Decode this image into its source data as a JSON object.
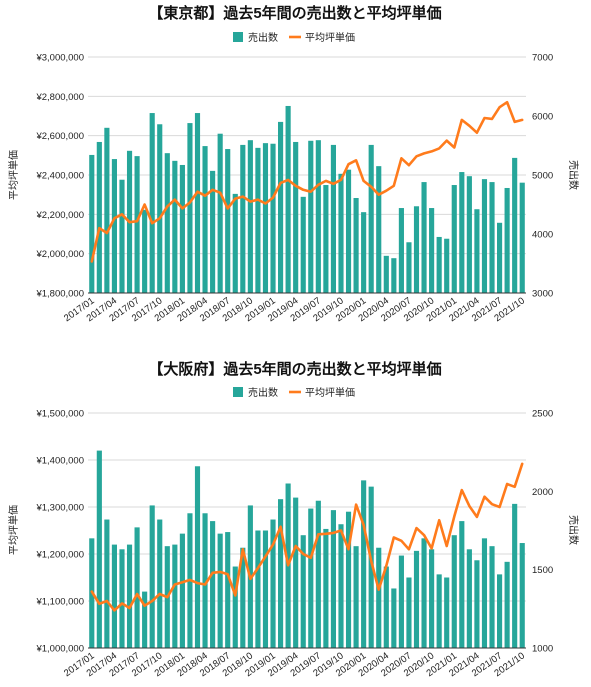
{
  "chart_data": [
    {
      "type": "bar",
      "title": "【東京都】過去5年間の売出数と平均坪単価",
      "legend": "top",
      "grid": true,
      "ylabel_left": "平均坪単価",
      "ylabel_right": "売出数",
      "ylim_left": [
        1800000,
        3000000
      ],
      "ylim_right": [
        3000,
        7000
      ],
      "yticks_left": [
        "¥1,800,000",
        "¥2,000,000",
        "¥2,200,000",
        "¥2,400,000",
        "¥2,600,000",
        "¥2,800,000",
        "¥3,000,000"
      ],
      "yticks_right": [
        "3000",
        "4000",
        "5000",
        "6000",
        "7000"
      ],
      "xtick_labels": [
        "2017/01",
        "2017/04",
        "2017/07",
        "2017/10",
        "2018/01",
        "2018/04",
        "2018/07",
        "2018/10",
        "2019/01",
        "2019/04",
        "2019/07",
        "2019/10",
        "2020/01",
        "2020/04",
        "2020/07",
        "2020/10",
        "2021/01",
        "2021/04",
        "2021/07",
        "2021/10"
      ],
      "categories": [
        "2017/01",
        "2017/02",
        "2017/03",
        "2017/04",
        "2017/05",
        "2017/06",
        "2017/07",
        "2017/08",
        "2017/09",
        "2017/10",
        "2017/11",
        "2017/12",
        "2018/01",
        "2018/02",
        "2018/03",
        "2018/04",
        "2018/05",
        "2018/06",
        "2018/07",
        "2018/08",
        "2018/09",
        "2018/10",
        "2018/11",
        "2018/12",
        "2019/01",
        "2019/02",
        "2019/03",
        "2019/04",
        "2019/05",
        "2019/06",
        "2019/07",
        "2019/08",
        "2019/09",
        "2019/10",
        "2019/11",
        "2019/12",
        "2020/01",
        "2020/02",
        "2020/03",
        "2020/04",
        "2020/05",
        "2020/06",
        "2020/07",
        "2020/08",
        "2020/09",
        "2020/10",
        "2020/11",
        "2020/12",
        "2021/01",
        "2021/02",
        "2021/03",
        "2021/04",
        "2021/05",
        "2021/06",
        "2021/07",
        "2021/08",
        "2021/09",
        "2021/10"
      ],
      "series": [
        {
          "name": "売出数",
          "type": "bar",
          "axis": "right",
          "color": "#26a69a",
          "values": [
            5340,
            5560,
            5800,
            5270,
            4920,
            5410,
            5320,
            4410,
            6050,
            5860,
            5370,
            5240,
            5170,
            5880,
            6050,
            5490,
            5070,
            5700,
            5440,
            4680,
            5510,
            5590,
            5460,
            5540,
            5530,
            5900,
            6170,
            5560,
            4630,
            5580,
            5590,
            4830,
            5510,
            5020,
            5090,
            4610,
            4370,
            5510,
            5150,
            3630,
            3590,
            4440,
            3860,
            4470,
            4880,
            4440,
            3950,
            3920,
            4830,
            5050,
            4980,
            4420,
            4930,
            4880,
            4190,
            4780,
            5290,
            4870
          ]
        },
        {
          "name": "平均坪単価",
          "type": "line",
          "axis": "left",
          "color": "#ff7b1c",
          "values": [
            1960000,
            2130000,
            2105000,
            2180000,
            2200000,
            2160000,
            2165000,
            2250000,
            2155000,
            2180000,
            2240000,
            2275000,
            2230000,
            2260000,
            2315000,
            2295000,
            2325000,
            2310000,
            2230000,
            2280000,
            2290000,
            2265000,
            2275000,
            2255000,
            2285000,
            2360000,
            2375000,
            2345000,
            2325000,
            2315000,
            2350000,
            2370000,
            2355000,
            2375000,
            2455000,
            2475000,
            2370000,
            2340000,
            2300000,
            2320000,
            2345000,
            2485000,
            2450000,
            2495000,
            2510000,
            2520000,
            2535000,
            2575000,
            2540000,
            2680000,
            2650000,
            2615000,
            2690000,
            2685000,
            2745000,
            2770000,
            2670000,
            2680000
          ]
        }
      ]
    },
    {
      "type": "bar",
      "title": "【大阪府】過去5年間の売出数と平均坪単価",
      "legend": "top",
      "grid": true,
      "ylabel_left": "平均坪単価",
      "ylabel_right": "売出数",
      "ylim_left": [
        1000000,
        1500000
      ],
      "ylim_right": [
        1000,
        2500
      ],
      "yticks_left": [
        "¥1,000,000",
        "¥1,100,000",
        "¥1,200,000",
        "¥1,300,000",
        "¥1,400,000",
        "¥1,500,000"
      ],
      "yticks_right": [
        "1000",
        "1500",
        "2000",
        "2500"
      ],
      "xtick_labels": [
        "2017/01",
        "2017/04",
        "2017/07",
        "2017/10",
        "2018/01",
        "2018/04",
        "2018/07",
        "2018/10",
        "2019/01",
        "2019/04",
        "2019/07",
        "2019/10",
        "2020/01",
        "2020/04",
        "2020/07",
        "2020/10",
        "2021/01",
        "2021/04",
        "2021/07",
        "2021/10"
      ],
      "categories": [
        "2017/01",
        "2017/02",
        "2017/03",
        "2017/04",
        "2017/05",
        "2017/06",
        "2017/07",
        "2017/08",
        "2017/09",
        "2017/10",
        "2017/11",
        "2017/12",
        "2018/01",
        "2018/02",
        "2018/03",
        "2018/04",
        "2018/05",
        "2018/06",
        "2018/07",
        "2018/08",
        "2018/09",
        "2018/10",
        "2018/11",
        "2018/12",
        "2019/01",
        "2019/02",
        "2019/03",
        "2019/04",
        "2019/05",
        "2019/06",
        "2019/07",
        "2019/08",
        "2019/09",
        "2019/10",
        "2019/11",
        "2019/12",
        "2020/01",
        "2020/02",
        "2020/03",
        "2020/04",
        "2020/05",
        "2020/06",
        "2020/07",
        "2020/08",
        "2020/09",
        "2020/10",
        "2020/11",
        "2020/12",
        "2021/01",
        "2021/02",
        "2021/03",
        "2021/04",
        "2021/05",
        "2021/06",
        "2021/07",
        "2021/08",
        "2021/09",
        "2021/10"
      ],
      "series": [
        {
          "name": "売出数",
          "type": "bar",
          "axis": "right",
          "color": "#26a69a",
          "values": [
            1700,
            2260,
            1820,
            1660,
            1630,
            1660,
            1770,
            1360,
            1910,
            1820,
            1650,
            1660,
            1730,
            1860,
            2160,
            1860,
            1810,
            1730,
            1740,
            1520,
            1640,
            1910,
            1750,
            1750,
            1820,
            1950,
            2050,
            1960,
            1720,
            1890,
            1940,
            1760,
            1880,
            1790,
            1870,
            1650,
            2070,
            2030,
            1640,
            1520,
            1380,
            1590,
            1450,
            1620,
            1700,
            1630,
            1470,
            1450,
            1720,
            1810,
            1630,
            1560,
            1700,
            1650,
            1470,
            1550,
            1920,
            1670
          ]
        },
        {
          "name": "平均坪単価",
          "type": "line",
          "axis": "left",
          "color": "#ff7b1c",
          "values": [
            1120000,
            1094000,
            1100000,
            1080000,
            1095000,
            1085000,
            1115000,
            1090000,
            1100000,
            1115000,
            1108000,
            1135000,
            1140000,
            1145000,
            1138000,
            1135000,
            1160000,
            1162000,
            1157000,
            1112000,
            1210000,
            1147000,
            1170000,
            1195000,
            1220000,
            1258000,
            1176000,
            1217000,
            1200000,
            1192000,
            1242000,
            1243000,
            1245000,
            1250000,
            1210000,
            1305000,
            1262000,
            1185000,
            1124000,
            1175000,
            1235000,
            1228000,
            1210000,
            1255000,
            1240000,
            1212000,
            1272000,
            1217000,
            1280000,
            1336000,
            1302000,
            1279000,
            1322000,
            1306000,
            1300000,
            1349000,
            1343000,
            1392000
          ]
        }
      ]
    }
  ]
}
